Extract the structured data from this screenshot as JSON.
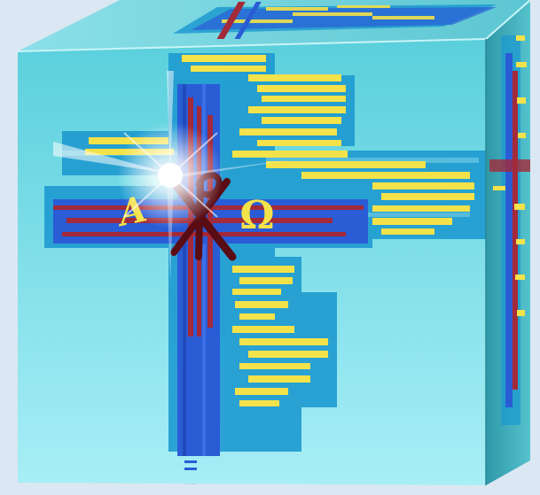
{
  "image": {
    "subject": "cube",
    "colors": {
      "background": "#dbe7f2",
      "front_face_top": "#5ad0dc",
      "front_face_bottom": "#9cecf4",
      "top_face": "#72d6e0",
      "right_face": "#3aa8b6",
      "blue_bar": "#2a5cd6",
      "red_bar": "#a32a3a",
      "dark_red": "#5a0c14",
      "yellow_text": "#f4e24a",
      "teal_block": "#1e9ad0"
    }
  },
  "symbols": {
    "alpha": "A",
    "omega": "Ω",
    "chi": "X",
    "rho": "P"
  }
}
